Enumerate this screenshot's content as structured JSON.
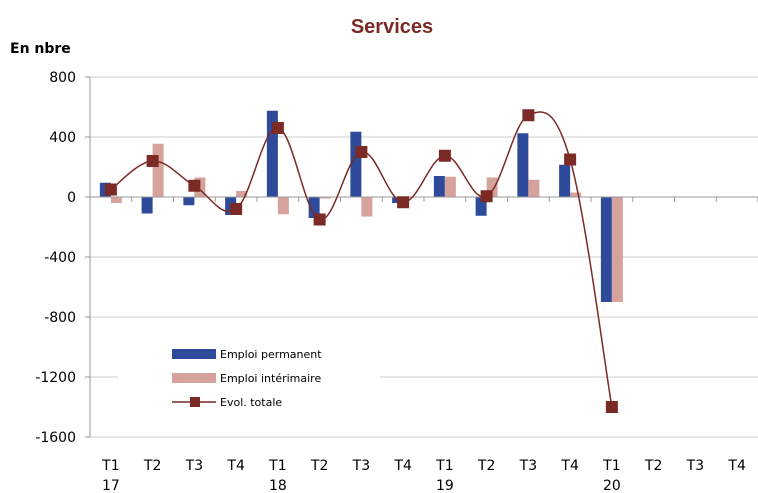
{
  "chart_data": {
    "type": "bar",
    "title": "Services",
    "ylabel": "En nbre",
    "ylim": [
      -1600,
      800
    ],
    "yticks": [
      800,
      400,
      0,
      -400,
      -800,
      -1200,
      -1600
    ],
    "ytick_labels": [
      "800",
      "400",
      "0",
      "-400",
      "-800",
      "-1200",
      "-1600"
    ],
    "quarters": [
      "T1",
      "T2",
      "T3",
      "T4",
      "T1",
      "T2",
      "T3",
      "T4",
      "T1",
      "T2",
      "T3",
      "T4",
      "T1",
      "T2",
      "T3",
      "T4"
    ],
    "years": [
      {
        "label": "17",
        "index": 0
      },
      {
        "label": "18",
        "index": 4
      },
      {
        "label": "19",
        "index": 8
      },
      {
        "label": "20",
        "index": 12
      }
    ],
    "series": [
      {
        "name": "Emploi permanent",
        "type": "bar",
        "color": "#2e4a9a",
        "values": [
          95,
          -110,
          -55,
          -120,
          575,
          -140,
          435,
          -40,
          140,
          -125,
          425,
          215,
          -700,
          null,
          null,
          null
        ]
      },
      {
        "name": "Emploi intérimaire",
        "type": "bar",
        "color": "#d5a39b",
        "values": [
          -40,
          355,
          130,
          40,
          -115,
          -10,
          -130,
          -5,
          135,
          130,
          115,
          30,
          -700,
          null,
          null,
          null
        ]
      },
      {
        "name": "Evol. totale",
        "type": "line",
        "color": "#7b2a26",
        "values": [
          50,
          240,
          75,
          -80,
          460,
          -150,
          300,
          -35,
          275,
          5,
          545,
          250,
          -1400,
          null,
          null,
          null
        ]
      }
    ],
    "legend": "lower-left",
    "grid": true,
    "colors": {
      "gridline": "#cccccc",
      "axis": "#9a9a9a",
      "title": "#7b2a26"
    }
  }
}
